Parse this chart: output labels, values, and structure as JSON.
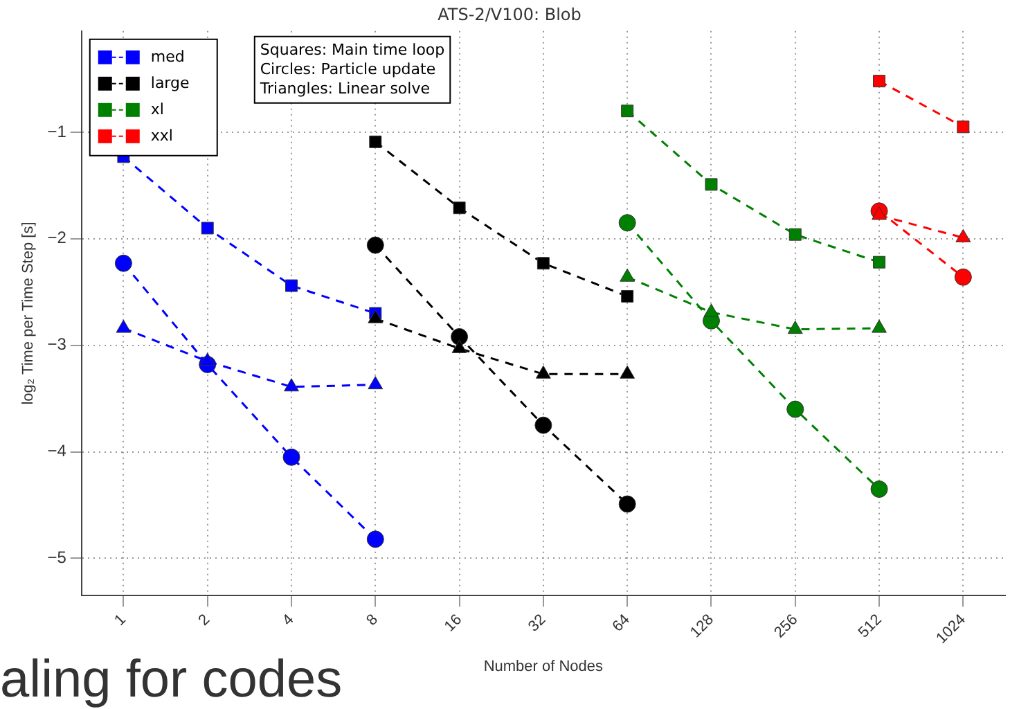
{
  "chart_data": {
    "type": "line",
    "title": "ATS-2/V100: Blob",
    "xlabel": "Number of Nodes",
    "ylabel": "log₂ Time per Time Step [s]",
    "categories": [
      "1",
      "2",
      "4",
      "8",
      "16",
      "32",
      "64",
      "128",
      "256",
      "512",
      "1024"
    ],
    "ylim": [
      -5.35,
      -0.05
    ],
    "yticks": [
      -5,
      -4,
      -3,
      -2,
      -1
    ],
    "grid": true,
    "legend": "top left",
    "line_style": "dashed",
    "annotations": [
      "Squares: Main time loop",
      "Circles: Particle update",
      "Triangles: Linear solve",
      "aling for codes"
    ],
    "series": [
      {
        "name": "med",
        "color": "#0000ff",
        "marker": "square",
        "values": [
          -1.23,
          -1.9,
          -2.44,
          -2.7,
          null,
          null,
          null,
          null,
          null,
          null,
          null
        ]
      },
      {
        "color": "#0000ff",
        "marker": "circle",
        "values": [
          -2.23,
          -3.18,
          -4.05,
          -4.82,
          null,
          null,
          null,
          null,
          null,
          null,
          null
        ]
      },
      {
        "color": "#0000ff",
        "marker": "triangle",
        "values": [
          -2.84,
          -3.15,
          -3.39,
          -3.37,
          null,
          null,
          null,
          null,
          null,
          null,
          null
        ]
      },
      {
        "name": "large",
        "color": "#000000",
        "marker": "square",
        "values": [
          null,
          null,
          null,
          -1.09,
          -1.71,
          -2.23,
          -2.54,
          null,
          null,
          null,
          null
        ]
      },
      {
        "color": "#000000",
        "marker": "circle",
        "values": [
          null,
          null,
          null,
          -2.06,
          -2.92,
          -3.75,
          -4.49,
          null,
          null,
          null,
          null
        ]
      },
      {
        "color": "#000000",
        "marker": "triangle",
        "values": [
          null,
          null,
          null,
          -2.75,
          -3.03,
          -3.27,
          -3.27,
          null,
          null,
          null,
          null
        ]
      },
      {
        "name": "xl",
        "color": "#008000",
        "marker": "square",
        "values": [
          null,
          null,
          null,
          null,
          null,
          null,
          -0.8,
          -1.49,
          -1.96,
          -2.22,
          null
        ]
      },
      {
        "color": "#008000",
        "marker": "circle",
        "values": [
          null,
          null,
          null,
          null,
          null,
          null,
          -1.85,
          -2.77,
          -3.6,
          -4.35,
          null
        ]
      },
      {
        "color": "#008000",
        "marker": "triangle",
        "values": [
          null,
          null,
          null,
          null,
          null,
          null,
          -2.36,
          -2.69,
          -2.85,
          -2.84,
          null
        ]
      },
      {
        "name": "xxl",
        "color": "#ff0000",
        "marker": "square",
        "values": [
          null,
          null,
          null,
          null,
          null,
          null,
          null,
          null,
          null,
          -0.52,
          -0.95
        ]
      },
      {
        "color": "#ff0000",
        "marker": "circle",
        "values": [
          null,
          null,
          null,
          null,
          null,
          null,
          null,
          null,
          null,
          -1.74,
          -2.36
        ]
      },
      {
        "color": "#ff0000",
        "marker": "triangle",
        "values": [
          null,
          null,
          null,
          null,
          null,
          null,
          null,
          null,
          null,
          -1.78,
          -1.99
        ]
      }
    ]
  }
}
